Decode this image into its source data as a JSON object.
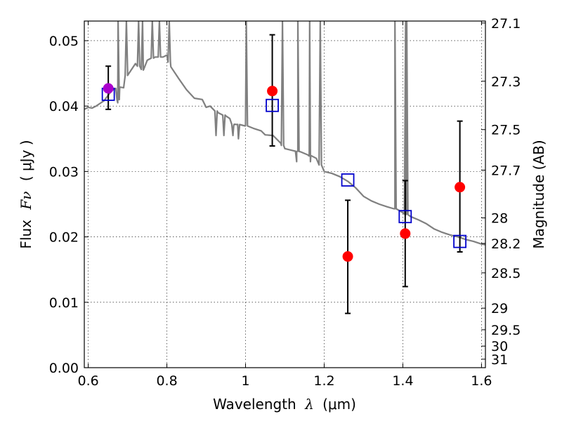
{
  "chart_data": {
    "type": "scatter",
    "xlabel_prefix": "Wavelength",
    "xlabel_lambda": "λ",
    "xlabel_unit": "(μm)",
    "ylabel_prefix": "Flux",
    "ylabel_symbol": "Fν",
    "ylabel_unit": "( μJy )",
    "y2label": "Magnitude (AB)",
    "xlim": [
      0.59,
      1.61
    ],
    "ylim": [
      0.0,
      0.053
    ],
    "grid": true,
    "x_ticks": [
      {
        "value": 0.6,
        "label": "0.6"
      },
      {
        "value": 0.8,
        "label": "0.8"
      },
      {
        "value": 1.0,
        "label": "1"
      },
      {
        "value": 1.2,
        "label": "1.2"
      },
      {
        "value": 1.4,
        "label": "1.4"
      },
      {
        "value": 1.6,
        "label": "1.6"
      }
    ],
    "y_ticks": [
      {
        "value": 0.0,
        "label": "0.00"
      },
      {
        "value": 0.01,
        "label": "0.01"
      },
      {
        "value": 0.02,
        "label": "0.02"
      },
      {
        "value": 0.03,
        "label": "0.03"
      },
      {
        "value": 0.04,
        "label": "0.04"
      },
      {
        "value": 0.05,
        "label": "0.05"
      }
    ],
    "y2_ticks": [
      {
        "flux": 0.0527,
        "label": "27.1"
      },
      {
        "flux": 0.0438,
        "label": "27.3"
      },
      {
        "flux": 0.0364,
        "label": "27.5"
      },
      {
        "flux": 0.0302,
        "label": "27.7"
      },
      {
        "flux": 0.0229,
        "label": "28"
      },
      {
        "flux": 0.019,
        "label": "28.2"
      },
      {
        "flux": 0.0145,
        "label": "28.5"
      },
      {
        "flux": 0.0091,
        "label": "29"
      },
      {
        "flux": 0.0058,
        "label": "29.5"
      },
      {
        "flux": 0.0033,
        "label": "30"
      },
      {
        "flux": 0.0013,
        "label": "31"
      }
    ],
    "colors": {
      "model": "#808080",
      "observed": "#ff0000",
      "synthetic": "#0000cc",
      "errorbar": "#000000",
      "first_point": "#aa00cc"
    },
    "series": [
      {
        "type": "line",
        "points": [
          [
            0.59,
            0.0395
          ],
          [
            0.6,
            0.0398
          ],
          [
            0.61,
            0.0397
          ],
          [
            0.62,
            0.04
          ],
          [
            0.63,
            0.0404
          ],
          [
            0.64,
            0.0408
          ],
          [
            0.65,
            0.0416
          ],
          [
            0.66,
            0.0424
          ],
          [
            0.67,
            0.0427
          ],
          [
            0.675,
            0.0405
          ],
          [
            0.68,
            0.0429
          ],
          [
            0.69,
            0.0428
          ],
          [
            0.7,
            0.0455
          ],
          [
            0.72,
            0.0465
          ],
          [
            0.74,
            0.0455
          ],
          [
            0.75,
            0.047
          ],
          [
            0.77,
            0.0475
          ],
          [
            0.79,
            0.0475
          ],
          [
            0.8,
            0.0478
          ],
          [
            0.81,
            0.046
          ],
          [
            0.83,
            0.0442
          ],
          [
            0.85,
            0.0425
          ],
          [
            0.87,
            0.0412
          ],
          [
            0.89,
            0.041
          ],
          [
            0.9,
            0.0398
          ],
          [
            0.91,
            0.04
          ],
          [
            0.93,
            0.039
          ],
          [
            0.95,
            0.0385
          ],
          [
            0.96,
            0.0381
          ],
          [
            0.97,
            0.037
          ],
          [
            0.98,
            0.0372
          ],
          [
            1.0,
            0.037
          ],
          [
            1.02,
            0.0366
          ],
          [
            1.04,
            0.0362
          ],
          [
            1.05,
            0.0356
          ],
          [
            1.07,
            0.0355
          ],
          [
            1.09,
            0.0343
          ],
          [
            1.1,
            0.0335
          ],
          [
            1.12,
            0.0332
          ],
          [
            1.14,
            0.033
          ],
          [
            1.16,
            0.0325
          ],
          [
            1.18,
            0.032
          ],
          [
            1.2,
            0.03
          ],
          [
            1.22,
            0.0297
          ],
          [
            1.24,
            0.0292
          ],
          [
            1.26,
            0.0285
          ],
          [
            1.28,
            0.0275
          ],
          [
            1.3,
            0.0262
          ],
          [
            1.32,
            0.0255
          ],
          [
            1.34,
            0.025
          ],
          [
            1.36,
            0.0246
          ],
          [
            1.38,
            0.0243
          ],
          [
            1.4,
            0.0237
          ],
          [
            1.42,
            0.0231
          ],
          [
            1.44,
            0.0226
          ],
          [
            1.46,
            0.022
          ],
          [
            1.48,
            0.0212
          ],
          [
            1.5,
            0.0207
          ],
          [
            1.52,
            0.0203
          ],
          [
            1.54,
            0.02
          ],
          [
            1.56,
            0.0196
          ],
          [
            1.58,
            0.0193
          ],
          [
            1.6,
            0.0189
          ],
          [
            1.61,
            0.0188
          ]
        ],
        "spikes": [
          {
            "x": 0.676,
            "top": 0.053
          },
          {
            "x": 0.697,
            "top": 0.053
          },
          {
            "x": 0.728,
            "top": 0.053
          },
          {
            "x": 0.738,
            "top": 0.053
          },
          {
            "x": 0.763,
            "top": 0.053
          },
          {
            "x": 0.781,
            "top": 0.053
          },
          {
            "x": 0.806,
            "top": 0.053
          },
          {
            "x": 1.002,
            "top": 0.053
          },
          {
            "x": 1.094,
            "top": 0.053
          },
          {
            "x": 1.133,
            "top": 0.053
          },
          {
            "x": 1.163,
            "top": 0.053
          },
          {
            "x": 1.19,
            "top": 0.053
          },
          {
            "x": 1.38,
            "top": 0.053
          },
          {
            "x": 1.407,
            "top": 0.053
          },
          {
            "x": 1.41,
            "top": 0.053
          }
        ],
        "dips": [
          {
            "x": 0.925,
            "bottom": 0.0355
          },
          {
            "x": 0.945,
            "bottom": 0.0355
          },
          {
            "x": 0.968,
            "bottom": 0.0355
          },
          {
            "x": 0.982,
            "bottom": 0.035
          },
          {
            "x": 1.13,
            "bottom": 0.0315
          },
          {
            "x": 1.165,
            "bottom": 0.0315
          }
        ]
      },
      {
        "type": "scatter-errorbar",
        "x": [
          0.651,
          1.068,
          1.26,
          1.406,
          1.545
        ],
        "y": [
          0.0427,
          0.0423,
          0.017,
          0.0205,
          0.0276
        ],
        "err_low": [
          0.0395,
          0.0339,
          0.0083,
          0.0124,
          0.0177
        ],
        "err_high": [
          0.0461,
          0.0509,
          0.0256,
          0.0286,
          0.0377
        ]
      },
      {
        "type": "open-square",
        "x": [
          0.651,
          1.068,
          1.26,
          1.406,
          1.545
        ],
        "y": [
          0.0418,
          0.0401,
          0.0287,
          0.0231,
          0.0193
        ]
      }
    ]
  }
}
